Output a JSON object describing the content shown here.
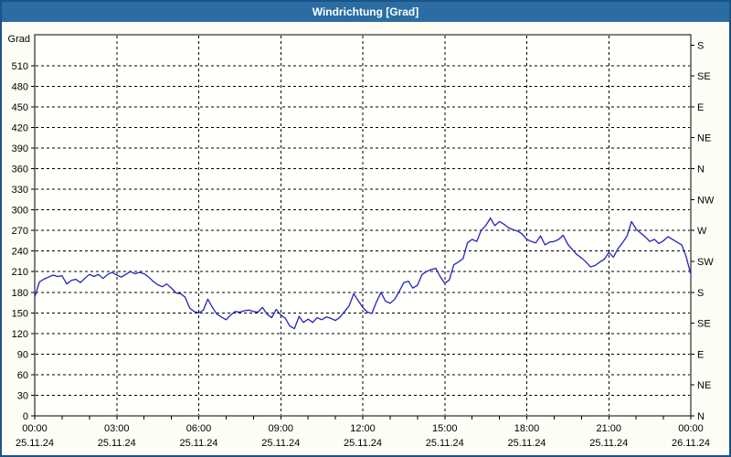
{
  "window": {
    "title": "Windrichtung [Grad]"
  },
  "colors": {
    "titlebar": "#2b6da3",
    "window_border": "#1a5386",
    "background": "#fdfdf6",
    "plot_background": "#fffffb",
    "line": "#2323bf",
    "grid": "#000000",
    "axis": "#000000",
    "text": "#000000"
  },
  "chart_data": {
    "type": "line",
    "title": "Windrichtung [Grad]",
    "y_axis": {
      "label": "Grad",
      "min": 0,
      "max": 555,
      "labeled_max": 540,
      "ticks_left": [
        0,
        30,
        60,
        90,
        120,
        150,
        180,
        210,
        240,
        270,
        300,
        330,
        360,
        390,
        420,
        450,
        480,
        510
      ],
      "ticks_right": [
        {
          "deg": 540,
          "label": "S"
        },
        {
          "deg": 495,
          "label": "SE"
        },
        {
          "deg": 450,
          "label": "E"
        },
        {
          "deg": 405,
          "label": "NE"
        },
        {
          "deg": 360,
          "label": "N"
        },
        {
          "deg": 315,
          "label": "NW"
        },
        {
          "deg": 270,
          "label": "W"
        },
        {
          "deg": 225,
          "label": "SW"
        },
        {
          "deg": 180,
          "label": "S"
        },
        {
          "deg": 135,
          "label": "SE"
        },
        {
          "deg": 90,
          "label": "E"
        },
        {
          "deg": 45,
          "label": "NE"
        },
        {
          "deg": 0,
          "label": "N"
        }
      ],
      "grid": true
    },
    "x_axis": {
      "min_hour": 0,
      "max_hour": 24,
      "minor_tick_every_hours": 1,
      "gridline_hours": [
        3,
        6,
        9,
        12,
        15,
        18,
        21
      ],
      "tick_labels": [
        {
          "hour": 0,
          "time": "00:00",
          "date": "25.11.24"
        },
        {
          "hour": 3,
          "time": "03:00",
          "date": "25.11.24"
        },
        {
          "hour": 6,
          "time": "06:00",
          "date": "25.11.24"
        },
        {
          "hour": 9,
          "time": "09:00",
          "date": "25.11.24"
        },
        {
          "hour": 12,
          "time": "12:00",
          "date": "25.11.24"
        },
        {
          "hour": 15,
          "time": "15:00",
          "date": "25.11.24"
        },
        {
          "hour": 18,
          "time": "18:00",
          "date": "25.11.24"
        },
        {
          "hour": 21,
          "time": "21:00",
          "date": "25.11.24"
        },
        {
          "hour": 24,
          "time": "00:00",
          "date": "26.11.24"
        }
      ],
      "grid": true
    },
    "legend": "none",
    "series": [
      {
        "name": "Windrichtung",
        "unit": "Grad",
        "color": "#2323bf",
        "points_hour_deg": [
          [
            0,
            173
          ],
          [
            0.17,
            195
          ],
          [
            0.33,
            199
          ],
          [
            0.5,
            202
          ],
          [
            0.67,
            205
          ],
          [
            0.83,
            203
          ],
          [
            1,
            204
          ],
          [
            1.17,
            192
          ],
          [
            1.33,
            197
          ],
          [
            1.5,
            199
          ],
          [
            1.67,
            194
          ],
          [
            1.83,
            200
          ],
          [
            2,
            206
          ],
          [
            2.17,
            203
          ],
          [
            2.33,
            206
          ],
          [
            2.5,
            200
          ],
          [
            2.67,
            206
          ],
          [
            2.83,
            209
          ],
          [
            3,
            205
          ],
          [
            3.17,
            202
          ],
          [
            3.33,
            206
          ],
          [
            3.5,
            210
          ],
          [
            3.67,
            207
          ],
          [
            3.83,
            209
          ],
          [
            4,
            207
          ],
          [
            4.17,
            202
          ],
          [
            4.33,
            196
          ],
          [
            4.5,
            191
          ],
          [
            4.67,
            188
          ],
          [
            4.83,
            192
          ],
          [
            5,
            186
          ],
          [
            5.17,
            179
          ],
          [
            5.33,
            178
          ],
          [
            5.5,
            173
          ],
          [
            5.67,
            157
          ],
          [
            5.83,
            152
          ],
          [
            6,
            150
          ],
          [
            6.17,
            154
          ],
          [
            6.33,
            170
          ],
          [
            6.5,
            158
          ],
          [
            6.67,
            148
          ],
          [
            6.83,
            144
          ],
          [
            7,
            140
          ],
          [
            7.17,
            147
          ],
          [
            7.33,
            152
          ],
          [
            7.5,
            151
          ],
          [
            7.67,
            153
          ],
          [
            7.83,
            154
          ],
          [
            8,
            152
          ],
          [
            8.17,
            151
          ],
          [
            8.33,
            158
          ],
          [
            8.5,
            148
          ],
          [
            8.67,
            143
          ],
          [
            8.83,
            155
          ],
          [
            9,
            147
          ],
          [
            9.17,
            142
          ],
          [
            9.33,
            131
          ],
          [
            9.5,
            127
          ],
          [
            9.67,
            145
          ],
          [
            9.83,
            136
          ],
          [
            10,
            141
          ],
          [
            10.17,
            136
          ],
          [
            10.33,
            143
          ],
          [
            10.5,
            140
          ],
          [
            10.67,
            144
          ],
          [
            10.83,
            142
          ],
          [
            11,
            139
          ],
          [
            11.17,
            144
          ],
          [
            11.33,
            152
          ],
          [
            11.5,
            160
          ],
          [
            11.67,
            178
          ],
          [
            11.83,
            168
          ],
          [
            12,
            158
          ],
          [
            12.17,
            151
          ],
          [
            12.33,
            149
          ],
          [
            12.5,
            166
          ],
          [
            12.67,
            180
          ],
          [
            12.83,
            167
          ],
          [
            13,
            164
          ],
          [
            13.17,
            170
          ],
          [
            13.33,
            181
          ],
          [
            13.5,
            194
          ],
          [
            13.67,
            196
          ],
          [
            13.83,
            186
          ],
          [
            14,
            190
          ],
          [
            14.17,
            206
          ],
          [
            14.33,
            210
          ],
          [
            14.5,
            213
          ],
          [
            14.67,
            215
          ],
          [
            14.83,
            203
          ],
          [
            15,
            193
          ],
          [
            15.17,
            198
          ],
          [
            15.33,
            220
          ],
          [
            15.5,
            224
          ],
          [
            15.67,
            229
          ],
          [
            15.83,
            252
          ],
          [
            16,
            257
          ],
          [
            16.17,
            254
          ],
          [
            16.33,
            270
          ],
          [
            16.5,
            277
          ],
          [
            16.67,
            288
          ],
          [
            16.83,
            277
          ],
          [
            17,
            283
          ],
          [
            17.17,
            279
          ],
          [
            17.33,
            274
          ],
          [
            17.5,
            271
          ],
          [
            17.67,
            269
          ],
          [
            17.83,
            265
          ],
          [
            18,
            257
          ],
          [
            18.17,
            254
          ],
          [
            18.33,
            252
          ],
          [
            18.5,
            262
          ],
          [
            18.67,
            249
          ],
          [
            18.83,
            253
          ],
          [
            19,
            254
          ],
          [
            19.17,
            257
          ],
          [
            19.33,
            263
          ],
          [
            19.5,
            250
          ],
          [
            19.67,
            242
          ],
          [
            19.83,
            235
          ],
          [
            20,
            230
          ],
          [
            20.17,
            224
          ],
          [
            20.33,
            217
          ],
          [
            20.5,
            219
          ],
          [
            20.67,
            224
          ],
          [
            20.83,
            228
          ],
          [
            21,
            238
          ],
          [
            21.17,
            231
          ],
          [
            21.33,
            243
          ],
          [
            21.5,
            252
          ],
          [
            21.67,
            262
          ],
          [
            21.83,
            283
          ],
          [
            22,
            272
          ],
          [
            22.17,
            266
          ],
          [
            22.33,
            261
          ],
          [
            22.5,
            254
          ],
          [
            22.67,
            257
          ],
          [
            22.83,
            251
          ],
          [
            23,
            255
          ],
          [
            23.17,
            261
          ],
          [
            23.33,
            257
          ],
          [
            23.5,
            253
          ],
          [
            23.67,
            249
          ],
          [
            23.83,
            232
          ],
          [
            24,
            206
          ]
        ]
      }
    ]
  }
}
